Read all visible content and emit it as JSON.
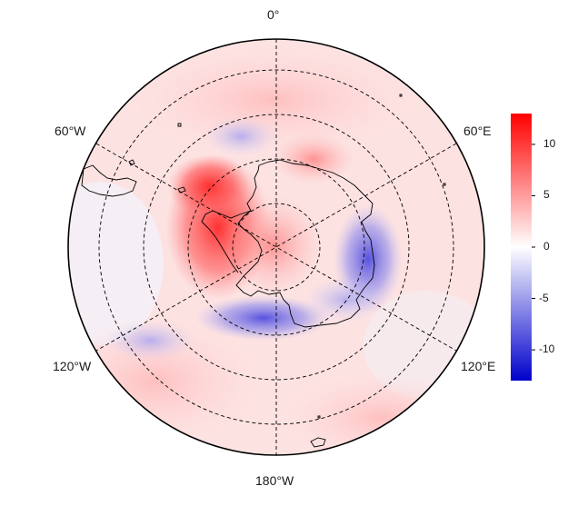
{
  "map": {
    "projection": "south-polar-stereographic",
    "longitude_labels": {
      "top": "0°",
      "upper_left": "60°W",
      "upper_right": "60°E",
      "lower_left": "120°W",
      "lower_right": "120°E",
      "bottom": "180°W"
    },
    "graticule": "dashed",
    "colors": {
      "positive": "#ff0000",
      "zero": "#ffffff",
      "negative": "#0000cc",
      "coastline": "#000000"
    }
  },
  "colorbar": {
    "ticks": [
      "10",
      "5",
      "0",
      "-5",
      "-10"
    ],
    "tick_values": [
      10,
      5,
      0,
      -5,
      -10
    ],
    "range": [
      -13,
      13
    ]
  }
}
